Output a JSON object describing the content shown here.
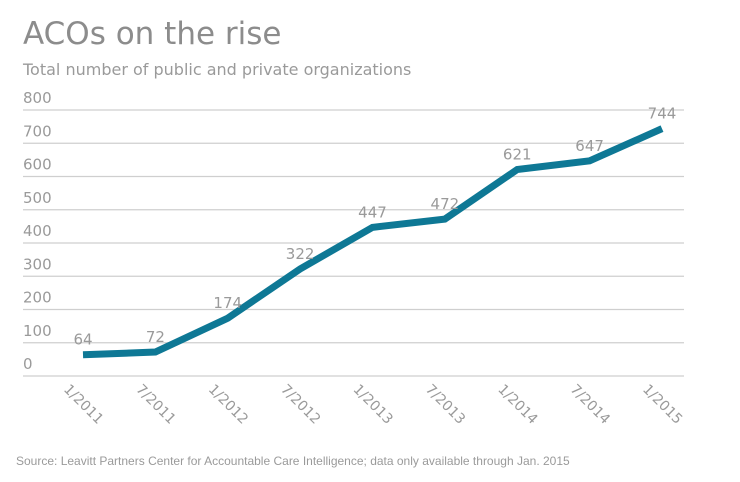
{
  "chart_data": {
    "type": "line",
    "title": "ACOs on the rise",
    "subtitle": "Total number of public and private organizations",
    "source": "Source: Leavitt Partners Center for Accountable Care Intelligence; data only available through Jan. 2015",
    "xlabel": "",
    "ylabel": "",
    "ylim": [
      0,
      800
    ],
    "yticks": [
      0,
      100,
      200,
      300,
      400,
      500,
      600,
      700,
      800
    ],
    "grid": true,
    "legend": "none",
    "categories": [
      "1/2011",
      "7/2011",
      "1/2012",
      "7/2012",
      "1/2013",
      "7/2013",
      "1/2014",
      "7/2014",
      "1/2015"
    ],
    "series": [
      {
        "name": "ACOs",
        "color": "#0e7895",
        "values": [
          64,
          72,
          174,
          322,
          447,
          472,
          621,
          647,
          744
        ]
      }
    ],
    "data_labels": [
      "64",
      "72",
      "174",
      "322",
      "447",
      "472",
      "621",
      "647",
      "744"
    ]
  }
}
